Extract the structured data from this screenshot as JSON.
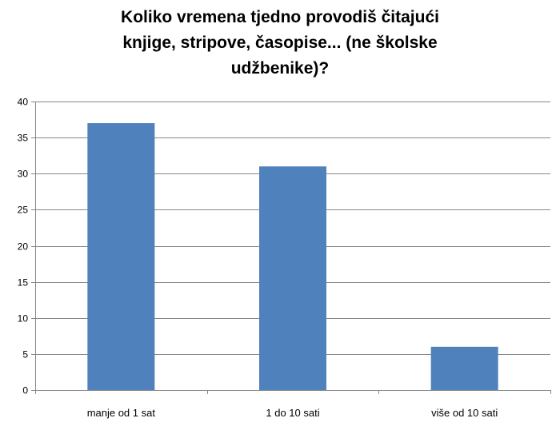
{
  "chart_data": {
    "type": "bar",
    "title_lines": [
      "Koliko vremena tjedno provodiš čitajući",
      "knjige, stripove, časopise... (ne školske",
      "udžbenike)?"
    ],
    "categories": [
      "manje od 1 sat",
      "1 do 10 sati",
      "više od 10 sati"
    ],
    "values": [
      37,
      31,
      6
    ],
    "y_ticks": [
      "0",
      "5",
      "10",
      "15",
      "20",
      "25",
      "30",
      "35",
      "40"
    ],
    "ylim": [
      0,
      40
    ],
    "grid": true,
    "legend": "none",
    "bar_color": "#4f81bd",
    "grid_color": "#888888"
  }
}
